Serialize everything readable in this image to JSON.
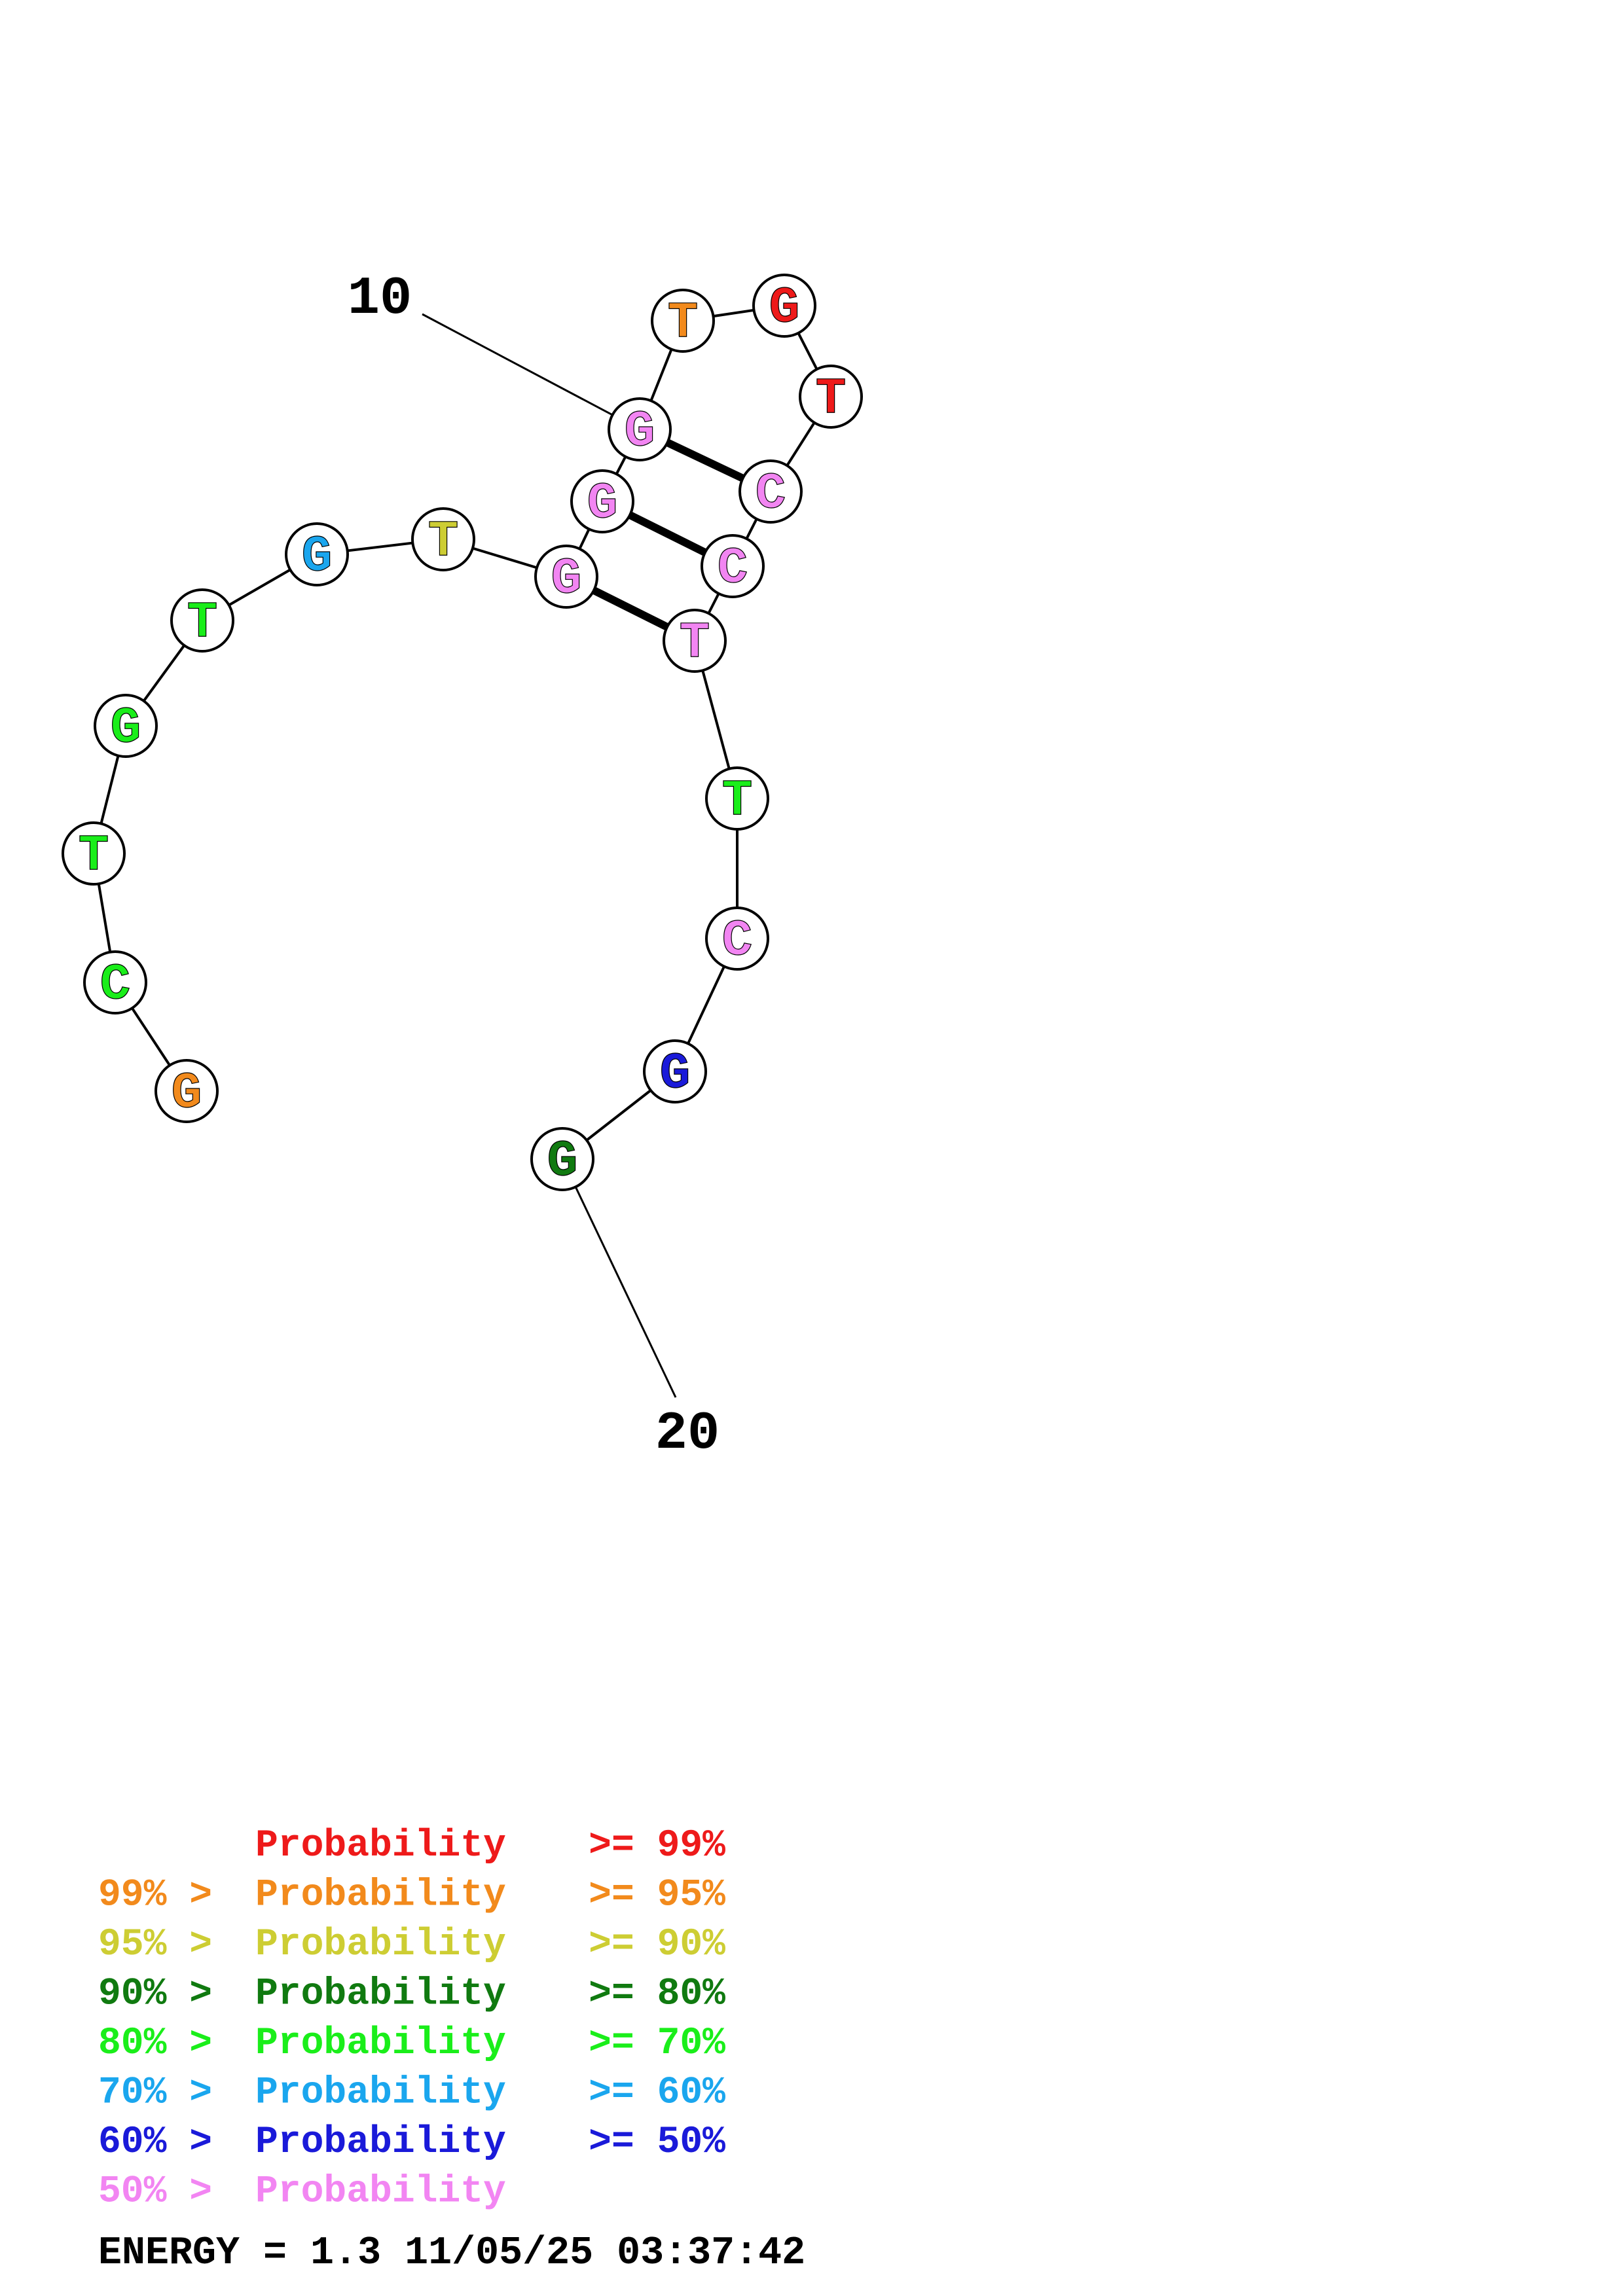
{
  "structure": {
    "nucleotides": [
      {
        "base": "G",
        "color": "#f28a1c"
      },
      {
        "base": "C",
        "color": "#1aee1a"
      },
      {
        "base": "T",
        "color": "#1aee1a"
      },
      {
        "base": "G",
        "color": "#1aee1a"
      },
      {
        "base": "T",
        "color": "#1aee1a"
      },
      {
        "base": "G",
        "color": "#1aa6ee"
      },
      {
        "base": "T",
        "color": "#cdcd33"
      },
      {
        "base": "G",
        "color": "#f285f2"
      },
      {
        "base": "G",
        "color": "#f285f2"
      },
      {
        "base": "G",
        "color": "#f285f2"
      },
      {
        "base": "T",
        "color": "#f28a1c"
      },
      {
        "base": "G",
        "color": "#ee1a1a"
      },
      {
        "base": "T",
        "color": "#ee1a1a"
      },
      {
        "base": "C",
        "color": "#f285f2"
      },
      {
        "base": "C",
        "color": "#f285f2"
      },
      {
        "base": "T",
        "color": "#f285f2"
      },
      {
        "base": "T",
        "color": "#1aee1a"
      },
      {
        "base": "C",
        "color": "#f285f2"
      },
      {
        "base": "G",
        "color": "#1a1ad9"
      },
      {
        "base": "G",
        "color": "#107a10"
      }
    ],
    "base_pairs": [
      [
        8,
        16
      ],
      [
        9,
        15
      ],
      [
        10,
        14
      ]
    ],
    "position_labels": [
      {
        "text": "10",
        "nucleotide": 10
      },
      {
        "text": "20",
        "nucleotide": 20
      }
    ]
  },
  "legend": [
    {
      "prefix": "",
      "label": "Probability",
      "suffix": ">= 99%",
      "color": "#ee1a1a"
    },
    {
      "prefix": "99% >",
      "label": "Probability",
      "suffix": ">= 95%",
      "color": "#f28a1c"
    },
    {
      "prefix": "95% >",
      "label": "Probability",
      "suffix": ">= 90%",
      "color": "#cdcd33"
    },
    {
      "prefix": "90% >",
      "label": "Probability",
      "suffix": ">= 80%",
      "color": "#107a10"
    },
    {
      "prefix": "80% >",
      "label": "Probability",
      "suffix": ">= 70%",
      "color": "#1aee1a"
    },
    {
      "prefix": "70% >",
      "label": "Probability",
      "suffix": ">= 60%",
      "color": "#1aa6ee"
    },
    {
      "prefix": "60% >",
      "label": "Probability",
      "suffix": ">= 50%",
      "color": "#1a1ad9"
    },
    {
      "prefix": "50% >",
      "label": "Probability",
      "suffix": "",
      "color": "#f285f2"
    }
  ],
  "energy_line": "ENERGY = 1.3  11/05/25 03:37:42"
}
